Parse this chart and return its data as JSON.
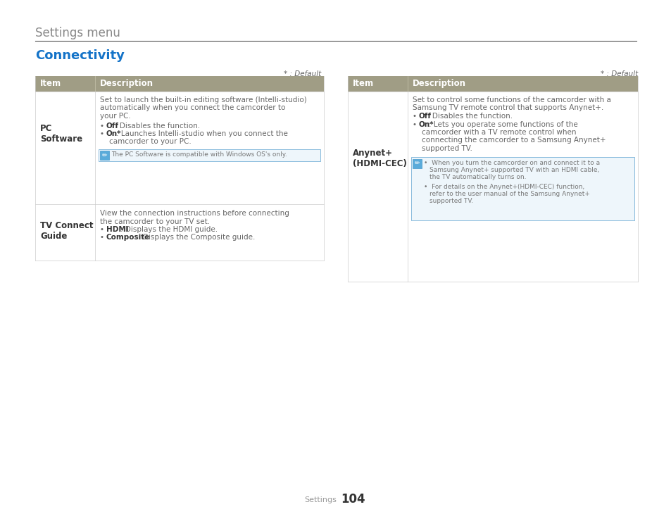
{
  "page_title": "Settings menu",
  "section_title": "Connectivity",
  "section_title_color": "#1473c8",
  "page_title_color": "#888888",
  "default_text": "* : Default",
  "header_bg": "#a09d85",
  "header_text_color": "#ffffff",
  "border_color": "#cccccc",
  "text_color": "#666666",
  "bold_color": "#333333",
  "note_bg": "#eef6fb",
  "note_border": "#88bbdd",
  "footer_label": "Settings",
  "footer_page": "104",
  "fig_w": 9.54,
  "fig_h": 7.3,
  "dpi": 100
}
